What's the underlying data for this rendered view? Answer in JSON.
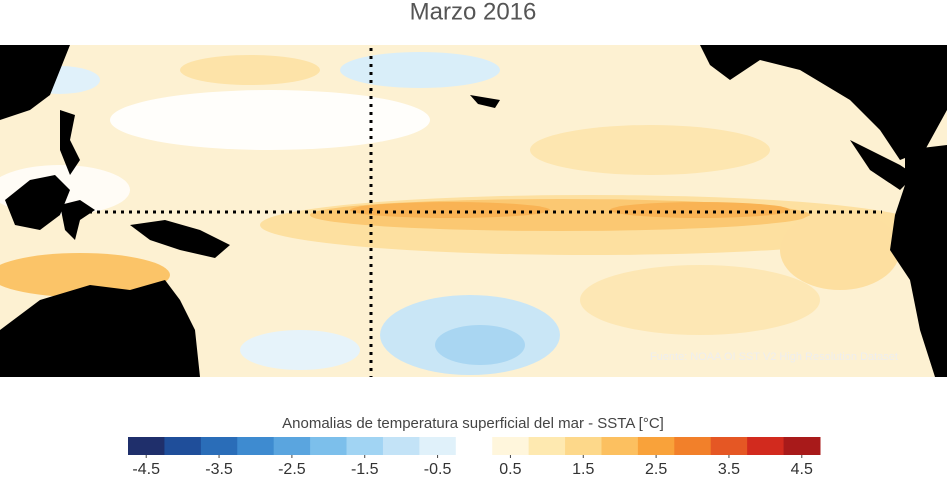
{
  "title": "Marzo 2016",
  "source": "Fuente: NOAA OI SST V2 High Resolution Dataset",
  "colorbar": {
    "label": "Anomalias de temperatura superficial del mar - SSTA  [°C]",
    "lim": [
      -4.75,
      4.75
    ],
    "ticks": [
      -4.5,
      -3.5,
      -2.5,
      -1.5,
      -0.5,
      0.5,
      1.5,
      2.5,
      3.5,
      4.5
    ],
    "colors": [
      "#1f2f6b",
      "#1f4e9a",
      "#2a6db8",
      "#3e8bd0",
      "#5aa5df",
      "#7cbfeb",
      "#a1d4f3",
      "#c3e3f7",
      "#e0f1fa",
      "#ffffff",
      "#fff6dc",
      "#fee9b0",
      "#fdd88a",
      "#fcc060",
      "#f9a23a",
      "#f2802a",
      "#e55724",
      "#d22a1e",
      "#a81a1a"
    ]
  }
}
